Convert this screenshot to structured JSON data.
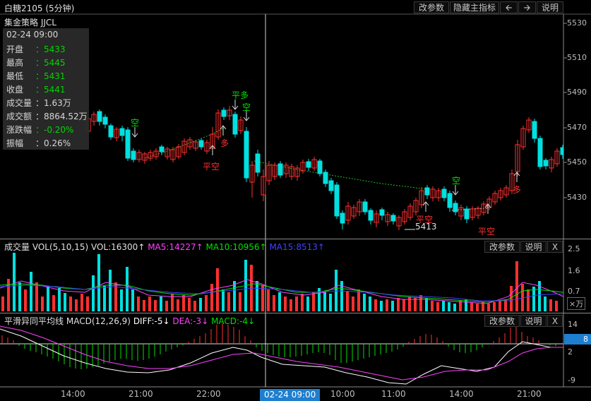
{
  "header": {
    "title": "白糖2105 (5分钟)",
    "strategy": "集金策略 JJCL",
    "buttons": [
      "改参数",
      "隐藏主指标",
      "说明"
    ]
  },
  "info_box": {
    "datetime": "02-24 09:00",
    "rows": [
      {
        "label": "开盘",
        "value": "：5433",
        "color": "#00e000"
      },
      {
        "label": "最高",
        "value": "：5445",
        "color": "#00e000"
      },
      {
        "label": "最低",
        "value": "：5431",
        "color": "#00e000"
      },
      {
        "label": "收盘",
        "value": "：5441",
        "color": "#00e000"
      },
      {
        "label": "成交量",
        "value": "：1.63万",
        "color": "#e0e0e0"
      },
      {
        "label": "成交额",
        "value": "：8864.52万",
        "color": "#e0e0e0"
      },
      {
        "label": "涨跌幅",
        "value": "：-0.20%",
        "color": "#00e000"
      },
      {
        "label": "振幅",
        "value": "：0.26%",
        "color": "#e0e0e0"
      }
    ]
  },
  "price_axis": [
    "5530",
    "5510",
    "5490",
    "5470",
    "5450",
    "5430"
  ],
  "signals": {
    "kong1": "空",
    "pingkong1": "平空",
    "duo1": "多",
    "pingduo": "平多",
    "kong2": "空",
    "pingkong2": "平空",
    "kong3": "空",
    "duo2": "多",
    "pingkong3": "平空",
    "low_marker": "5413"
  },
  "volume_panel": {
    "title": "成交量",
    "indicator": "VOL(5,10,15)",
    "vol": "VOL:16300↑",
    "ma5": "MA5:14227↑",
    "ma10": "MA10:10956↑",
    "ma15": "MA15:8513↑",
    "buttons": [
      "改参数",
      "说明",
      "X"
    ],
    "axis": [
      "2.5",
      "1.6",
      "0.7"
    ],
    "unit": "×万",
    "colors": {
      "ma5": "#ff40ff",
      "ma10": "#00e000",
      "ma15": "#4040ff"
    }
  },
  "macd_panel": {
    "title": "平滑异同平均线",
    "indicator": "MACD(12,26,9)",
    "diff": "DIFF:-5↓",
    "dea": "DEA:-3↓",
    "macd": "MACD:-4↓",
    "buttons": [
      "改参数",
      "说明",
      "X"
    ],
    "axis": [
      "14",
      "8",
      "2",
      "-9"
    ],
    "colors": {
      "diff": "#ffffff",
      "dea": "#ff40ff",
      "macd": "#00e000"
    }
  },
  "x_axis": [
    "14:00",
    "21:00",
    "22:00",
    "02-24 09:00",
    "10:00",
    "11:00",
    "14:00",
    "21:00"
  ],
  "colors": {
    "up": "#ff3030",
    "down": "#00e0e0",
    "green": "#00e000",
    "red": "#ff3030"
  }
}
